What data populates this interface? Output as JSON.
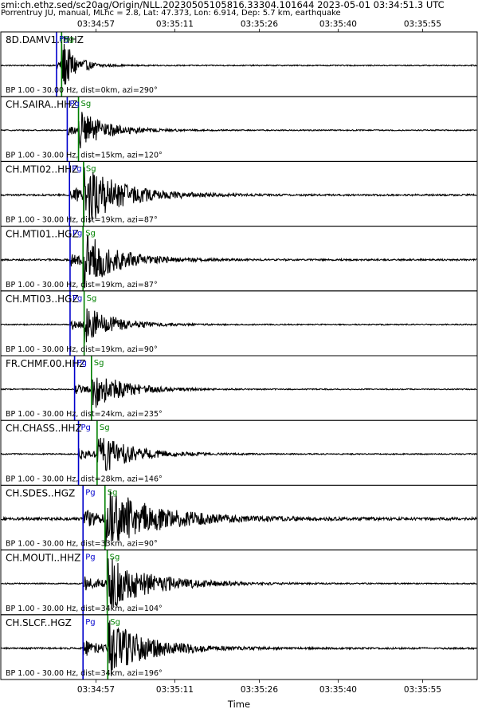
{
  "header": {
    "title": "smi:ch.ethz.sed/sc20ag/Origin/NLL.20230505105816.33304.101644 2023-05-01 03:34:51.3 UTC",
    "subtitle": "Porrentruy JU, manual, MLhc = 2.8, Lat: 47.373, Lon: 6.914, Dep: 5.7 km, earthquake"
  },
  "chart_data": {
    "type": "line",
    "xlabel": "Time",
    "ylabel": "",
    "x_ticks": [
      "03:34:57",
      "03:35:11",
      "03:35:26",
      "03:35:40",
      "03:35:55"
    ],
    "x_tick_seconds": [
      57,
      71,
      86,
      100,
      115
    ],
    "xlim_seconds": [
      40.1,
      124.7
    ],
    "colors": {
      "trace": "#000000",
      "p_pick": "#0000cc",
      "s_pick": "#008000"
    },
    "traces": [
      {
        "station": "8D.DAMV1..HHZ",
        "filter": "BP 1.00 - 30.00 Hz, dist=0km, azi=290°",
        "p_label": "Pg",
        "s_label": "Sg",
        "p_time": 50.0,
        "s_time": 50.9,
        "amplitude": 0.9,
        "decay": 2.5,
        "noise": 0.02
      },
      {
        "station": "CH.SAIRA..HHZ",
        "filter": "BP 1.00 - 30.00 Hz, dist=15km, azi=120°",
        "p_label": "Pg",
        "s_label": "Sg",
        "p_time": 51.9,
        "s_time": 53.9,
        "amplitude": 0.65,
        "decay": 5.0,
        "noise": 0.02
      },
      {
        "station": "CH.MTI02..HHZ",
        "filter": "BP 1.00 - 30.00 Hz, dist=19km, azi=87°",
        "p_label": "Pg",
        "s_label": "Sg",
        "p_time": 52.3,
        "s_time": 54.8,
        "amplitude": 1.0,
        "decay": 7.0,
        "noise": 0.03
      },
      {
        "station": "CH.MTI01..HGZ",
        "filter": "BP 1.00 - 30.00 Hz, dist=19km, azi=87°",
        "p_label": "Pg",
        "s_label": "Sg",
        "p_time": 52.4,
        "s_time": 54.7,
        "amplitude": 0.95,
        "decay": 6.0,
        "noise": 0.03
      },
      {
        "station": "CH.MTI03..HGZ",
        "filter": "BP 1.00 - 30.00 Hz, dist=19km, azi=90°",
        "p_label": "Pg",
        "s_label": "Sg",
        "p_time": 52.4,
        "s_time": 54.9,
        "amplitude": 0.7,
        "decay": 5.0,
        "noise": 0.02
      },
      {
        "station": "FR.CHMF.00.HHZ",
        "filter": "BP 1.00 - 30.00 Hz, dist=24km, azi=235°",
        "p_label": "Pg",
        "s_label": "Sg",
        "p_time": 53.2,
        "s_time": 56.2,
        "amplitude": 0.7,
        "decay": 5.5,
        "noise": 0.02
      },
      {
        "station": "CH.CHASS..HHZ",
        "filter": "BP 1.00 - 30.00 Hz, dist=28km, azi=146°",
        "p_label": "Pg",
        "s_label": "Sg",
        "p_time": 53.9,
        "s_time": 57.2,
        "amplitude": 0.75,
        "decay": 6.0,
        "noise": 0.02
      },
      {
        "station": "CH.SDES..HGZ",
        "filter": "BP 1.00 - 30.00 Hz, dist=33km, azi=90°",
        "p_label": "Pg",
        "s_label": "Sg",
        "p_time": 54.7,
        "s_time": 58.6,
        "amplitude": 1.05,
        "decay": 9.0,
        "noise": 0.05
      },
      {
        "station": "CH.MOUTI..HHZ",
        "filter": "BP 1.00 - 30.00 Hz, dist=34km, azi=104°",
        "p_label": "Pg",
        "s_label": "Sg",
        "p_time": 54.7,
        "s_time": 59.0,
        "amplitude": 0.9,
        "decay": 8.0,
        "noise": 0.02
      },
      {
        "station": "CH.SLCF..HGZ",
        "filter": "BP 1.00 - 30.00 Hz, dist=34km, azi=196°",
        "p_label": "Pg",
        "s_label": "Sg",
        "p_time": 54.7,
        "s_time": 59.1,
        "amplitude": 1.0,
        "decay": 7.0,
        "noise": 0.03
      }
    ]
  }
}
